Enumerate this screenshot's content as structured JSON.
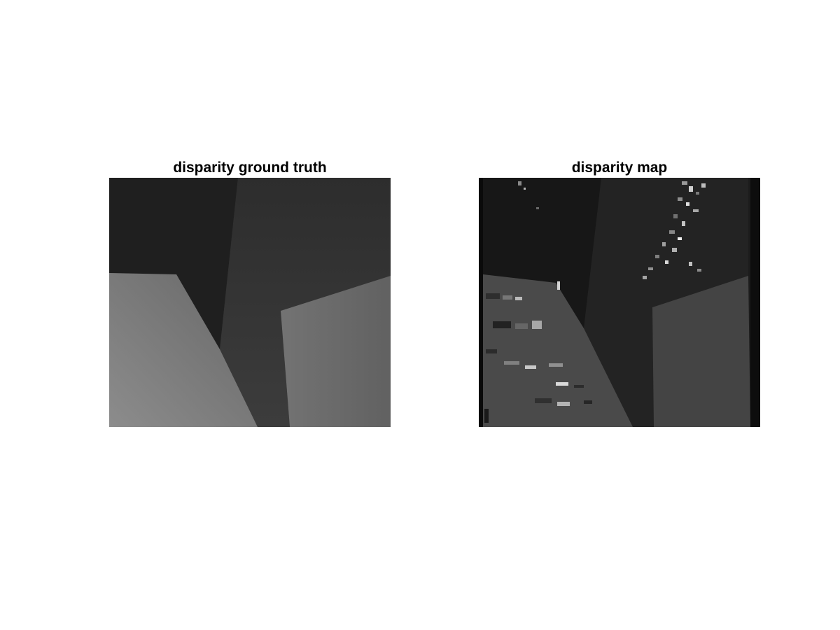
{
  "figure": {
    "panels": [
      {
        "title": "disparity ground truth"
      },
      {
        "title": "disparity map"
      }
    ]
  },
  "colors": {
    "background": "#ffffff",
    "title_text": "#000000"
  }
}
